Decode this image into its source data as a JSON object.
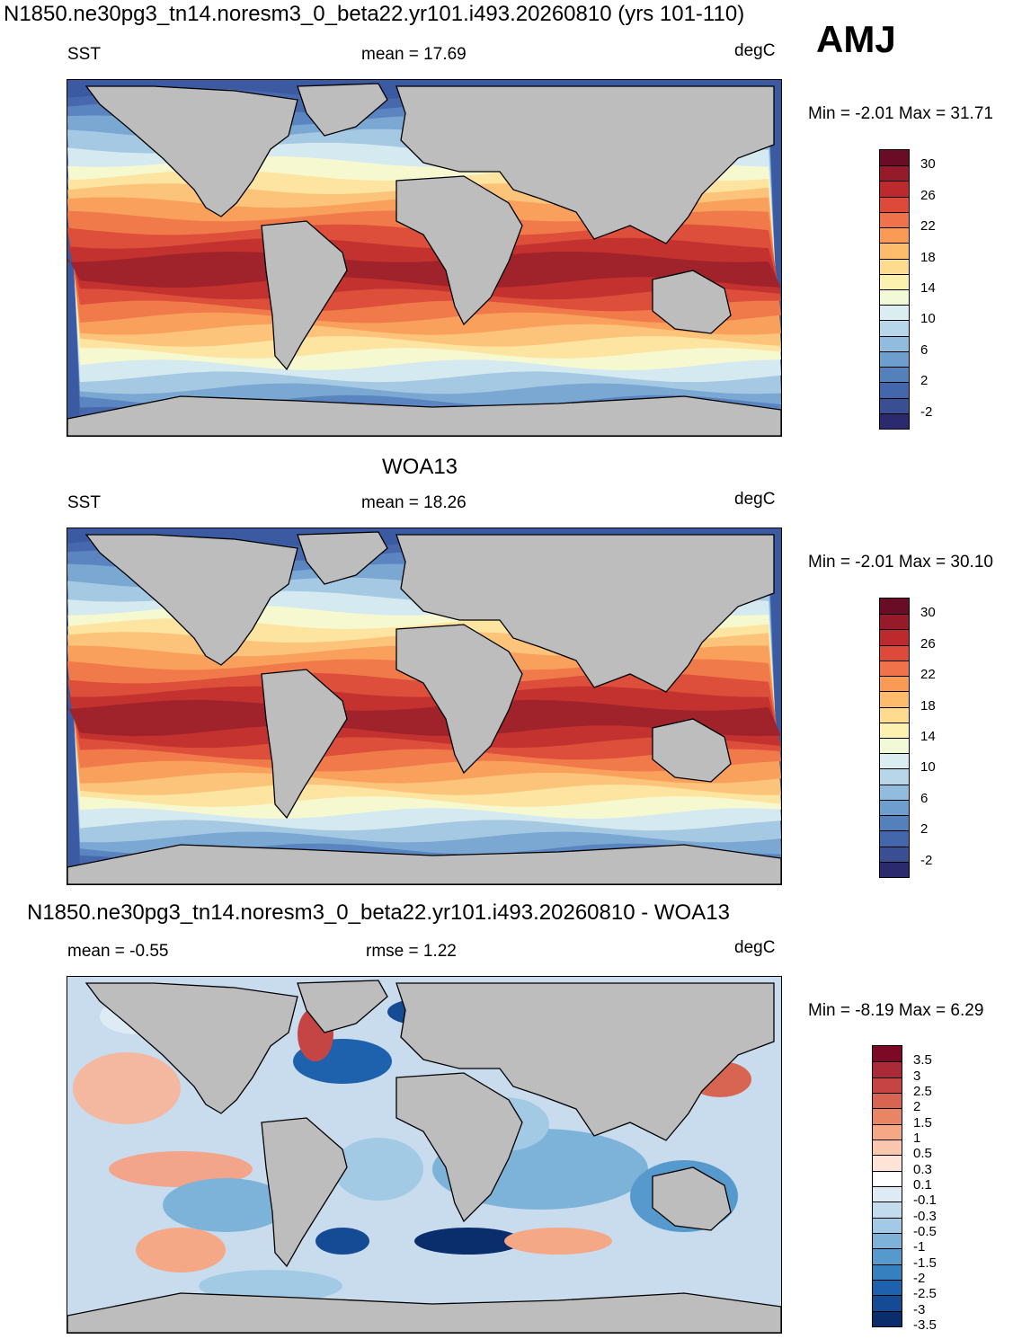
{
  "header": {
    "title": "N1850.ne30pg3_tn14.noresm3_0_beta22.yr101.i493.20260810 (yrs 101-110)",
    "season": "AMJ"
  },
  "panels": [
    {
      "variable": "SST",
      "mean_text": "mean =  17.69",
      "units": "degC",
      "minmax_text": "Min =  -2.01 Max =  31.71",
      "colorbar": {
        "colors": [
          "#2c2a6e",
          "#3a4f93",
          "#4466aa",
          "#5481bc",
          "#6e9ecd",
          "#91bcdd",
          "#b7d6ea",
          "#daeef2",
          "#f2f9d7",
          "#fdf1b0",
          "#fedc8f",
          "#fdbb6c",
          "#f99a55",
          "#f0724a",
          "#dd4a3a",
          "#bd2a2e",
          "#951b2a",
          "#6a0c25"
        ],
        "labels": [
          "30",
          "26",
          "22",
          "18",
          "14",
          "10",
          "6",
          "2",
          "-2"
        ]
      }
    },
    {
      "panel_title": "WOA13",
      "variable": "SST",
      "mean_text": "mean =  18.26",
      "units": "degC",
      "minmax_text": "Min =  -2.01 Max =  30.10",
      "colorbar": {
        "colors": [
          "#2c2a6e",
          "#3a4f93",
          "#4466aa",
          "#5481bc",
          "#6e9ecd",
          "#91bcdd",
          "#b7d6ea",
          "#daeef2",
          "#f2f9d7",
          "#fdf1b0",
          "#fedc8f",
          "#fdbb6c",
          "#f99a55",
          "#f0724a",
          "#dd4a3a",
          "#bd2a2e",
          "#951b2a",
          "#6a0c25"
        ],
        "labels": [
          "30",
          "26",
          "22",
          "18",
          "14",
          "10",
          "6",
          "2",
          "-2"
        ]
      }
    },
    {
      "panel_title": "N1850.ne30pg3_tn14.noresm3_0_beta22.yr101.i493.20260810 - WOA13",
      "mean_text": "mean =  -0.55",
      "rmse_text": "rmse =    1.22",
      "units": "degC",
      "minmax_text": "Min =  -8.19 Max =    6.29",
      "colorbar": {
        "colors": [
          "#0a2d6b",
          "#144b94",
          "#1e62ad",
          "#3680bf",
          "#5699cc",
          "#7eb3d9",
          "#a3cae5",
          "#c2dced",
          "#deebf5",
          "#ffffff",
          "#fde4d6",
          "#f9c7ad",
          "#f4a886",
          "#e88565",
          "#d86552",
          "#c54545",
          "#ab2a37",
          "#7c0a26"
        ],
        "labels": [
          "3.5",
          "3",
          "2.5",
          "2",
          "1.5",
          "1",
          "0.5",
          "0.3",
          "0.1",
          "-0.1",
          "-0.3",
          "-0.5",
          "-1",
          "-1.5",
          "-2",
          "-2.5",
          "-3",
          "-3.5"
        ]
      }
    }
  ]
}
